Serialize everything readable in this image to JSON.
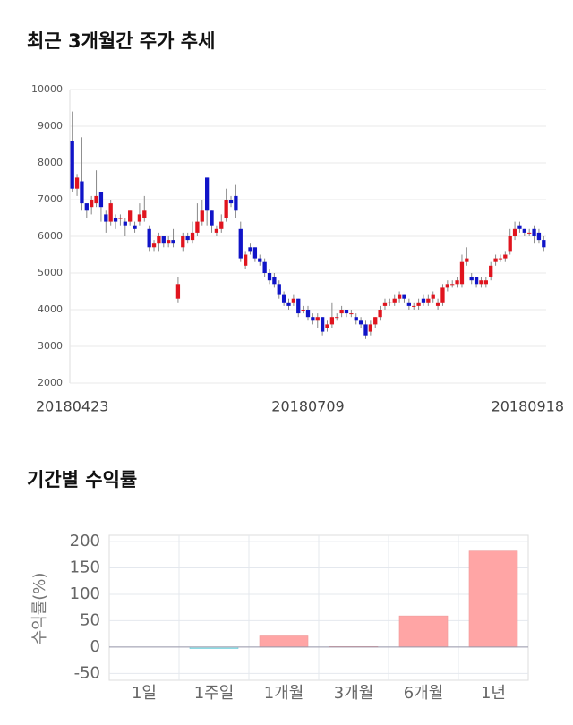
{
  "chart_data": [
    {
      "type": "candlestick",
      "title": "최근 3개월간 주가 추세",
      "categories": [
        "20180423",
        null,
        null,
        null,
        null,
        null,
        null,
        null,
        null,
        null,
        null,
        null,
        null,
        null,
        null,
        null,
        null,
        null,
        null,
        null,
        null,
        null,
        null,
        null,
        null,
        null,
        null,
        null,
        null,
        null,
        null,
        null,
        null,
        null,
        null,
        null,
        null,
        null,
        null,
        null,
        null,
        null,
        null,
        null,
        null,
        null,
        null,
        null,
        null,
        "20180709",
        null,
        null,
        null,
        null,
        null,
        null,
        null,
        null,
        null,
        null,
        null,
        null,
        null,
        null,
        null,
        null,
        null,
        null,
        null,
        null,
        null,
        null,
        null,
        null,
        null,
        null,
        null,
        null,
        null,
        null,
        null,
        null,
        null,
        null,
        null,
        null,
        null,
        null,
        null,
        null,
        null,
        null,
        null,
        null,
        null,
        null,
        "20180918",
        null,
        null
      ],
      "open": [
        8600,
        7300,
        7500,
        6900,
        6800,
        6900,
        7200,
        6600,
        6400,
        6500,
        6500,
        6400,
        6400,
        6300,
        6400,
        6500,
        6200,
        5700,
        5800,
        6000,
        5800,
        5900,
        4300,
        5700,
        6000,
        5900,
        6100,
        6400,
        7600,
        6700,
        6100,
        6200,
        6500,
        7000,
        7100,
        6200,
        5200,
        5700,
        5700,
        5400,
        5300,
        5000,
        4900,
        4700,
        4400,
        4200,
        4200,
        4300,
        4000,
        4000,
        3800,
        3700,
        3800,
        3500,
        3600,
        3800,
        3900,
        4000,
        3900,
        3800,
        3700,
        3600,
        3400,
        3600,
        3800,
        4100,
        4200,
        4200,
        4300,
        4400,
        4200,
        4100,
        4100,
        4300,
        4200,
        4300,
        4100,
        4200,
        4600,
        4700,
        4700,
        4700,
        5300,
        4900,
        4900,
        4700,
        4700,
        4900,
        5300,
        5400,
        5400,
        5600,
        6000,
        6300,
        6200,
        6100,
        6200,
        6100,
        5900
      ],
      "high": [
        9400,
        7700,
        8700,
        6900,
        7100,
        7800,
        7200,
        6700,
        7000,
        6600,
        6600,
        6500,
        6700,
        6400,
        6900,
        7100,
        6300,
        5900,
        6100,
        6000,
        6000,
        6200,
        4900,
        6100,
        6100,
        6400,
        6900,
        7000,
        7600,
        6700,
        6300,
        6600,
        7300,
        7100,
        7400,
        6400,
        5600,
        5800,
        5700,
        5500,
        5400,
        5100,
        5000,
        4800,
        4500,
        4300,
        4400,
        4300,
        4100,
        4100,
        3900,
        3900,
        3800,
        3700,
        4200,
        3900,
        4100,
        4000,
        4000,
        3900,
        3800,
        3700,
        3700,
        3800,
        4100,
        4300,
        4300,
        4400,
        4500,
        4400,
        4300,
        4200,
        4300,
        4400,
        4400,
        4500,
        4300,
        4700,
        4800,
        4800,
        4900,
        5500,
        5700,
        5000,
        4900,
        4900,
        4900,
        5300,
        5500,
        5500,
        5600,
        6200,
        6400,
        6400,
        6200,
        6200,
        6300,
        6200,
        6000
      ],
      "low": [
        7200,
        7100,
        6700,
        6500,
        6600,
        6800,
        6400,
        6100,
        6300,
        6200,
        6300,
        6000,
        6300,
        6100,
        6300,
        6400,
        5600,
        5600,
        5600,
        5700,
        5700,
        5700,
        4200,
        5600,
        5800,
        5800,
        6000,
        6300,
        6300,
        6100,
        6000,
        6100,
        6400,
        6800,
        6500,
        5300,
        5100,
        5500,
        5300,
        5200,
        4900,
        4700,
        4600,
        4300,
        4100,
        4000,
        4100,
        3800,
        3900,
        3700,
        3600,
        3500,
        3300,
        3400,
        3500,
        3700,
        3800,
        3800,
        3800,
        3600,
        3500,
        3200,
        3300,
        3500,
        3700,
        4000,
        4100,
        4100,
        4200,
        4200,
        4000,
        4000,
        4000,
        4100,
        4100,
        4200,
        4000,
        4100,
        4500,
        4600,
        4600,
        4600,
        5200,
        4700,
        4600,
        4600,
        4600,
        4800,
        5200,
        5300,
        5300,
        5500,
        5900,
        6100,
        6000,
        6000,
        5800,
        5800,
        5600
      ],
      "close": [
        7300,
        7600,
        6900,
        6700,
        7000,
        7100,
        6800,
        6400,
        6900,
        6400,
        6500,
        6300,
        6700,
        6200,
        6600,
        6700,
        5700,
        5800,
        6000,
        5800,
        5900,
        5800,
        4700,
        6000,
        5900,
        6100,
        6400,
        6700,
        6700,
        6300,
        6200,
        6400,
        7000,
        6900,
        6700,
        5400,
        5500,
        5600,
        5400,
        5300,
        5000,
        4800,
        4700,
        4400,
        4200,
        4100,
        4300,
        3900,
        4000,
        3800,
        3700,
        3800,
        3400,
        3600,
        3800,
        3800,
        4000,
        3900,
        3900,
        3700,
        3600,
        3300,
        3600,
        3800,
        4000,
        4200,
        4200,
        4300,
        4400,
        4300,
        4100,
        4100,
        4200,
        4200,
        4300,
        4400,
        4200,
        4600,
        4700,
        4700,
        4800,
        5300,
        5400,
        4800,
        4700,
        4800,
        4800,
        5200,
        5400,
        5400,
        5500,
        6000,
        6200,
        6200,
        6100,
        6100,
        6000,
        5900,
        5700
      ],
      "up_color": "#e0141e",
      "down_color": "#1014c8",
      "ylim": [
        2000,
        10000
      ],
      "yticks": [
        2000,
        3000,
        4000,
        5000,
        6000,
        7000,
        8000,
        9000,
        10000
      ],
      "grid": true
    },
    {
      "type": "bar",
      "title": "기간별 수익률",
      "ylabel": "수익률(%)",
      "categories": [
        "1일",
        "1주일",
        "1개월",
        "3개월",
        "6개월",
        "1년"
      ],
      "values": [
        0,
        -3,
        21,
        1,
        59,
        182
      ],
      "colors": [
        "#ffa5a5",
        "#a8eeee",
        "#ffa5a5",
        "#ffa5a5",
        "#ffa5a5",
        "#ffa5a5"
      ],
      "ylim": [
        -63,
        212
      ],
      "yticks": [
        -50,
        0,
        50,
        100,
        150,
        200
      ],
      "grid": true
    }
  ]
}
